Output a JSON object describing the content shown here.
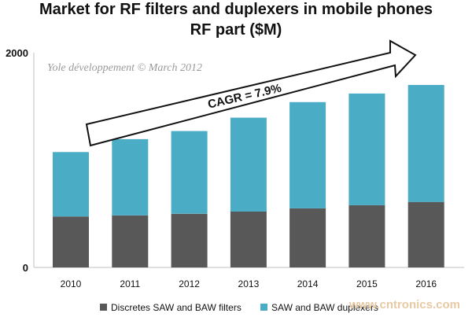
{
  "chart_data": {
    "type": "bar",
    "stacked": true,
    "title": "Market for RF filters and duplexers in mobile phones",
    "subtitle": "RF part ($M)",
    "categories": [
      "2010",
      "2011",
      "2012",
      "2013",
      "2014",
      "2015",
      "2016"
    ],
    "series": [
      {
        "name": "Discretes SAW and BAW filters",
        "color": "#585858",
        "values": [
          475,
          485,
          500,
          520,
          550,
          580,
          610
        ]
      },
      {
        "name": "SAW and BAW duplexers",
        "color": "#4bacc6",
        "values": [
          600,
          710,
          770,
          875,
          990,
          1040,
          1090
        ]
      }
    ],
    "ylim": [
      0,
      2000
    ],
    "yticks": [
      "0",
      "2000"
    ],
    "grid": false,
    "legend_position": "bottom",
    "annotations": {
      "source": "Yole développement  © March 2012",
      "cagr": "CAGR = 7.9%"
    }
  },
  "watermark": "www.cntronics.com"
}
